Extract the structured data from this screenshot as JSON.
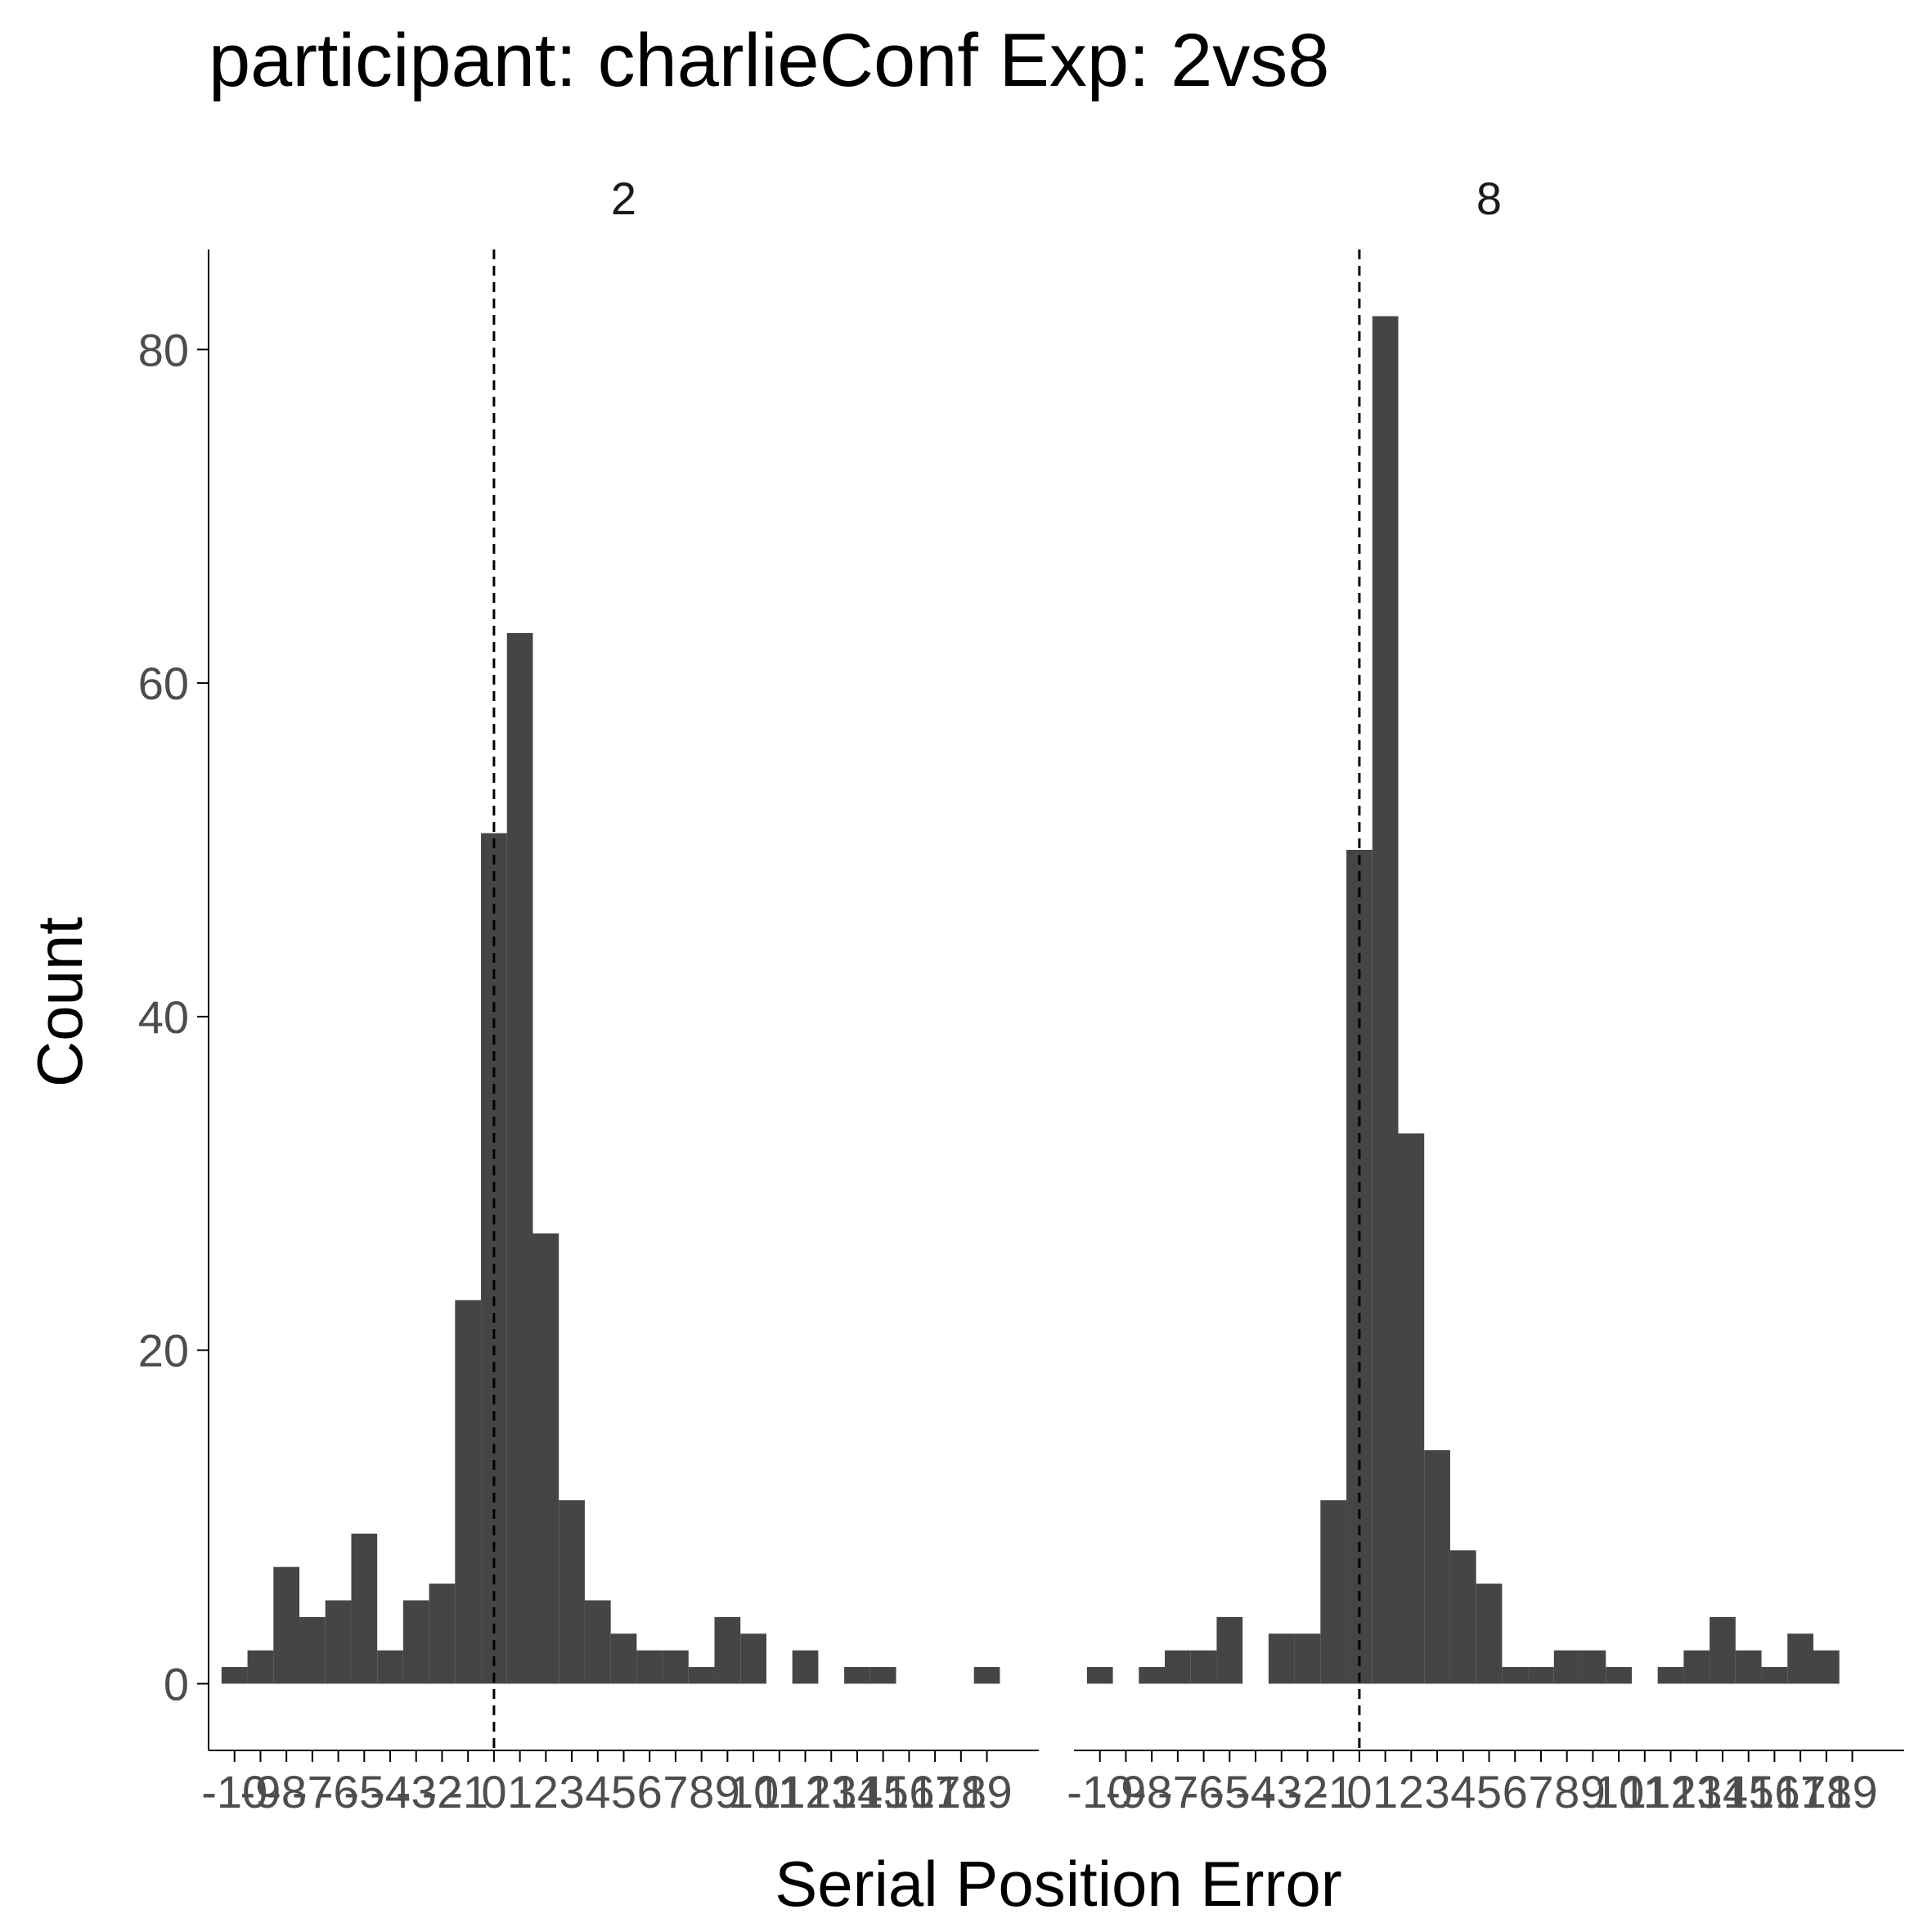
{
  "chart_data": {
    "type": "bar",
    "title": "participant: charlieConf Exp: 2vs8",
    "xlabel": "Serial Position Error",
    "ylabel": "Count",
    "x_tick_labels": [
      "-10",
      "-9",
      "-8",
      "-7",
      "-6",
      "-5",
      "-4",
      "-3",
      "-2",
      "-1",
      "0",
      "1",
      "2",
      "3",
      "4",
      "5",
      "6",
      "7",
      "8",
      "9",
      "10",
      "11",
      "12",
      "13",
      "14",
      "15",
      "16",
      "17",
      "18",
      "19"
    ],
    "y_ticks": [
      0,
      20,
      40,
      60,
      80
    ],
    "ylim": [
      -4,
      86
    ],
    "xlim": [
      -11,
      21
    ],
    "reference_line": {
      "x": 0,
      "style": "dashed"
    },
    "facets": [
      {
        "label": "2",
        "x": [
          -10,
          -9,
          -8,
          -7,
          -6,
          -5,
          -4,
          -3,
          -2,
          -1,
          0,
          1,
          2,
          3,
          4,
          5,
          6,
          7,
          8,
          9,
          10,
          11,
          12,
          13,
          14,
          15,
          16,
          17,
          18,
          19
        ],
        "values": [
          1,
          2,
          7,
          4,
          5,
          9,
          2,
          5,
          6,
          23,
          51,
          63,
          27,
          11,
          5,
          3,
          2,
          2,
          1,
          4,
          3,
          0,
          2,
          0,
          1,
          1,
          0,
          0,
          0,
          1
        ]
      },
      {
        "label": "8",
        "x": [
          -10,
          -9,
          -8,
          -7,
          -6,
          -5,
          -4,
          -3,
          -2,
          -1,
          0,
          1,
          2,
          3,
          4,
          5,
          6,
          7,
          8,
          9,
          10,
          11,
          12,
          13,
          14,
          15,
          16,
          17,
          18,
          19
        ],
        "values": [
          1,
          0,
          1,
          2,
          2,
          4,
          0,
          3,
          3,
          11,
          50,
          82,
          33,
          14,
          8,
          6,
          1,
          1,
          2,
          2,
          1,
          0,
          1,
          2,
          4,
          2,
          1,
          3,
          2,
          0
        ]
      }
    ],
    "colors": {
      "bars": "#454545",
      "axis": "#000000",
      "tick_labels": "#4d4d4d"
    },
    "grid": false,
    "legend": "none"
  }
}
